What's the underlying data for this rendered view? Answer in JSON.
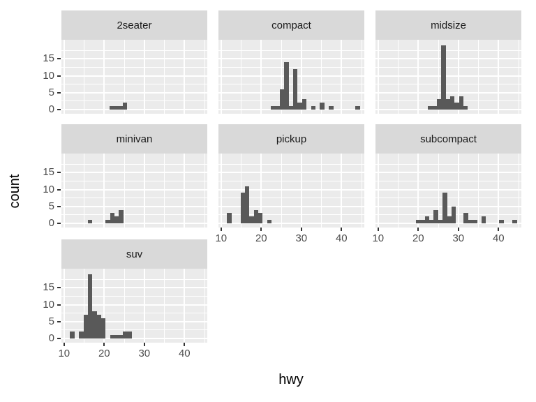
{
  "chart_data": {
    "type": "bar",
    "subtype": "faceted-histogram",
    "facet_variable": "class",
    "xlabel": "hwy",
    "ylabel": "count",
    "x_ticks": [
      10,
      20,
      30,
      40
    ],
    "y_ticks": [
      0,
      5,
      10,
      15
    ],
    "x_minor_gridlines": [
      15,
      25,
      35,
      45
    ],
    "y_minor_gridlines": [
      2.5,
      7.5,
      12.5,
      17.5
    ],
    "xlim": [
      9.6,
      45.9
    ],
    "ylim": [
      0,
      20.6
    ],
    "binwidth": 1.1,
    "grid": true,
    "legend": false,
    "panels": [
      {
        "label": "2seater",
        "bars": [
          [
            21.9,
            1
          ],
          [
            23.0,
            1
          ],
          [
            24.1,
            1
          ],
          [
            25.2,
            2
          ]
        ]
      },
      {
        "label": "compact",
        "bars": [
          [
            23.0,
            1
          ],
          [
            24.1,
            1
          ],
          [
            25.2,
            6
          ],
          [
            26.3,
            14
          ],
          [
            27.4,
            1
          ],
          [
            28.5,
            12
          ],
          [
            29.6,
            2
          ],
          [
            30.7,
            3
          ],
          [
            33.0,
            1
          ],
          [
            35.2,
            2
          ],
          [
            37.4,
            1
          ],
          [
            44.0,
            1
          ]
        ]
      },
      {
        "label": "midsize",
        "bars": [
          [
            23.0,
            1
          ],
          [
            24.1,
            1
          ],
          [
            25.2,
            3
          ],
          [
            26.3,
            19
          ],
          [
            27.4,
            3
          ],
          [
            28.5,
            4
          ],
          [
            29.6,
            2
          ],
          [
            30.7,
            4
          ],
          [
            31.8,
            1
          ]
        ]
      },
      {
        "label": "minivan",
        "bars": [
          [
            16.5,
            1
          ],
          [
            20.9,
            1
          ],
          [
            22.0,
            3
          ],
          [
            23.1,
            2
          ],
          [
            24.2,
            4
          ]
        ]
      },
      {
        "label": "pickup",
        "bars": [
          [
            12.0,
            3
          ],
          [
            15.4,
            9
          ],
          [
            16.5,
            11
          ],
          [
            17.6,
            2
          ],
          [
            18.7,
            4
          ],
          [
            19.8,
            3
          ],
          [
            22.0,
            1
          ]
        ]
      },
      {
        "label": "subcompact",
        "bars": [
          [
            20.0,
            1
          ],
          [
            21.1,
            1
          ],
          [
            22.2,
            2
          ],
          [
            23.3,
            1
          ],
          [
            24.4,
            4
          ],
          [
            25.5,
            1
          ],
          [
            26.6,
            9
          ],
          [
            27.7,
            2
          ],
          [
            28.8,
            5
          ],
          [
            31.9,
            3
          ],
          [
            33.0,
            1
          ],
          [
            34.1,
            1
          ],
          [
            36.3,
            2
          ],
          [
            40.7,
            1
          ],
          [
            44.0,
            1
          ]
        ]
      },
      {
        "label": "suv",
        "bars": [
          [
            12.0,
            2
          ],
          [
            14.3,
            2
          ],
          [
            15.4,
            7
          ],
          [
            16.5,
            19
          ],
          [
            17.6,
            8
          ],
          [
            18.7,
            7
          ],
          [
            19.8,
            6
          ],
          [
            22.0,
            1
          ],
          [
            23.1,
            1
          ],
          [
            24.2,
            1
          ],
          [
            25.3,
            2
          ],
          [
            26.4,
            2
          ]
        ]
      }
    ],
    "colors": {
      "bar": "#595959",
      "panel_background": "#EBEBEB",
      "strip_background": "#D9D9D9",
      "gridline": "#FFFFFF",
      "axis_text": "#4D4D4D",
      "strip_text": "#1A1A1A",
      "axis_title_text": "#000000",
      "tick_mark": "#333333",
      "page_background": "#FFFFFF"
    }
  }
}
